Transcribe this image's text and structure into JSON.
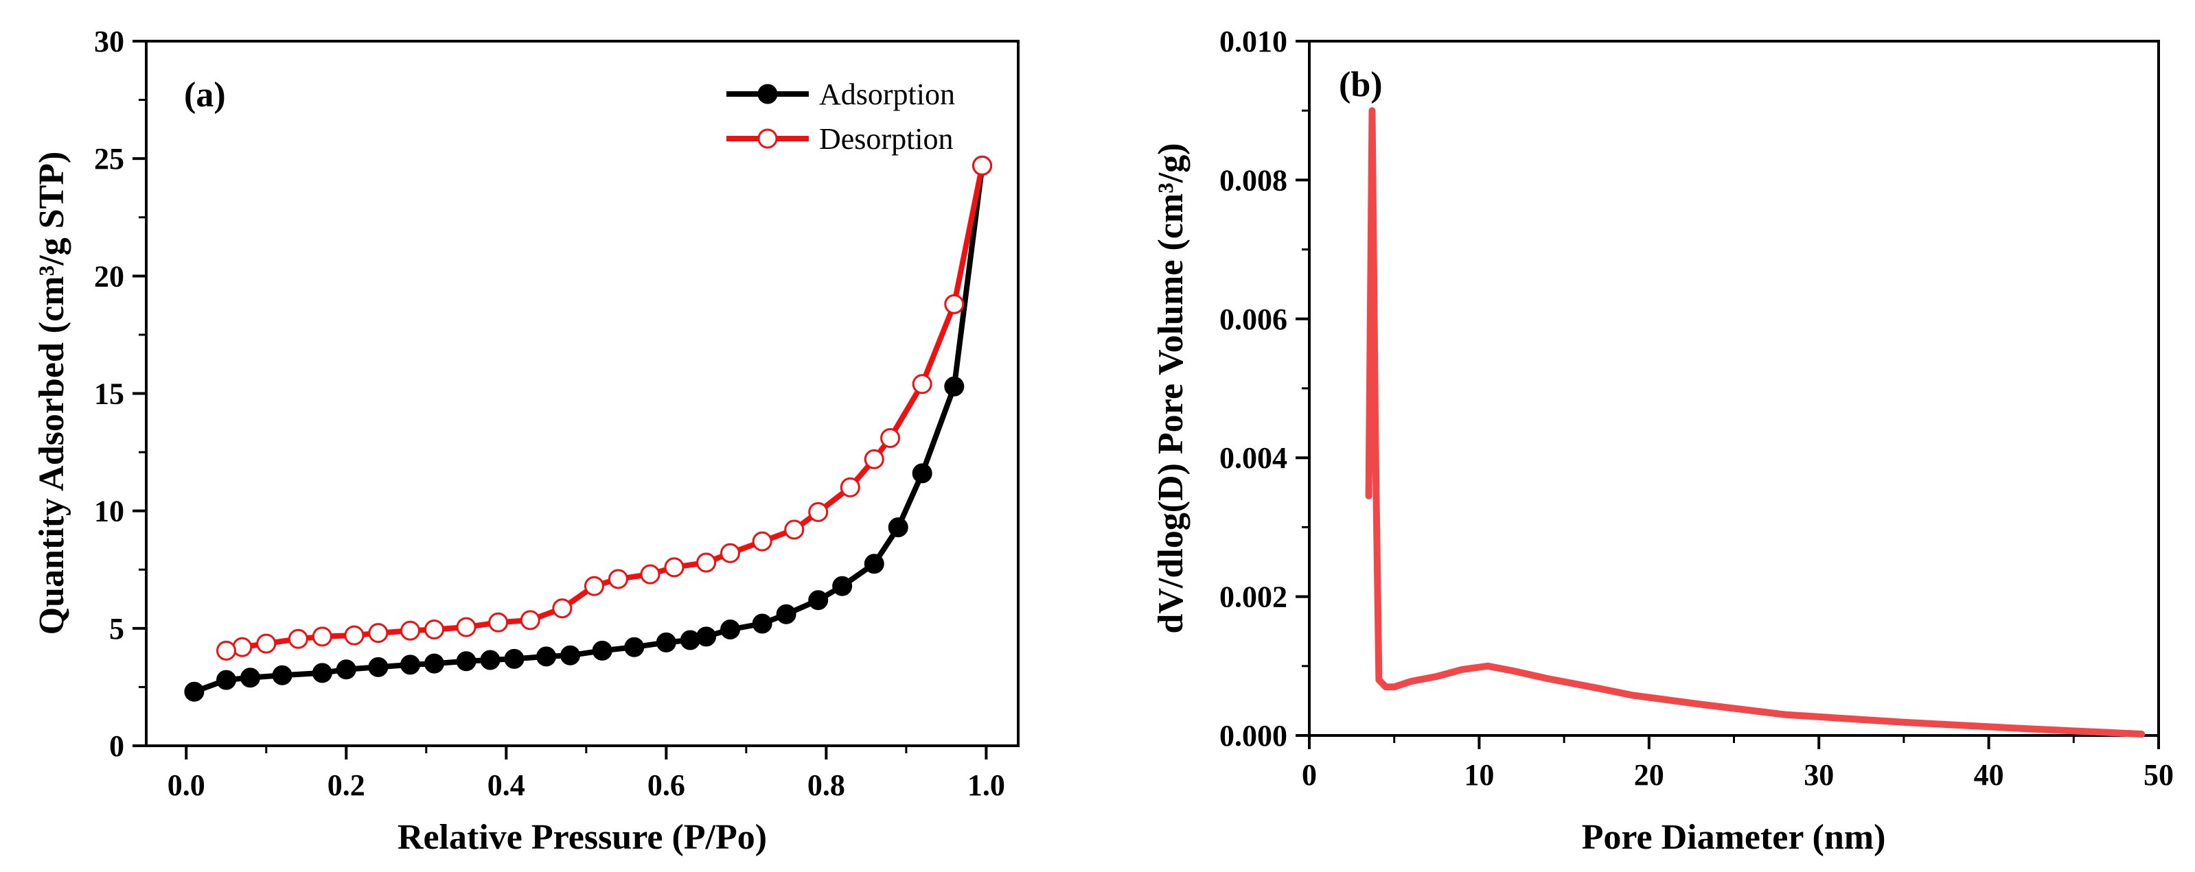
{
  "chart_data": [
    {
      "type": "line",
      "panel_label": "(a)",
      "xlabel": "Relative Pressure (P/Po)",
      "ylabel": "Quantity Adsorbed (cm³/g STP)",
      "xlim": [
        -0.05,
        1.04
      ],
      "ylim": [
        0,
        30
      ],
      "xticks": [
        0.0,
        0.2,
        0.4,
        0.6,
        0.8,
        1.0
      ],
      "xtick_labels": [
        "0.0",
        "0.2",
        "0.4",
        "0.6",
        "0.8",
        "1.0"
      ],
      "yticks": [
        0,
        5,
        10,
        15,
        20,
        25,
        30
      ],
      "ytick_labels": [
        "0",
        "5",
        "10",
        "15",
        "20",
        "25",
        "30"
      ],
      "grid": false,
      "legend_position": "top-right",
      "series": [
        {
          "name": "Adsorption",
          "color": "#000000",
          "marker": "filled-circle",
          "points": [
            [
              0.01,
              2.3
            ],
            [
              0.05,
              2.8
            ],
            [
              0.08,
              2.9
            ],
            [
              0.12,
              3.0
            ],
            [
              0.17,
              3.1
            ],
            [
              0.2,
              3.25
            ],
            [
              0.24,
              3.35
            ],
            [
              0.28,
              3.45
            ],
            [
              0.31,
              3.5
            ],
            [
              0.35,
              3.6
            ],
            [
              0.38,
              3.65
            ],
            [
              0.41,
              3.7
            ],
            [
              0.45,
              3.8
            ],
            [
              0.48,
              3.85
            ],
            [
              0.52,
              4.05
            ],
            [
              0.56,
              4.2
            ],
            [
              0.6,
              4.4
            ],
            [
              0.63,
              4.5
            ],
            [
              0.65,
              4.65
            ],
            [
              0.68,
              4.95
            ],
            [
              0.72,
              5.2
            ],
            [
              0.75,
              5.6
            ],
            [
              0.79,
              6.2
            ],
            [
              0.82,
              6.8
            ],
            [
              0.86,
              7.75
            ],
            [
              0.89,
              9.3
            ],
            [
              0.92,
              11.6
            ],
            [
              0.96,
              15.3
            ],
            [
              0.995,
              24.7
            ]
          ]
        },
        {
          "name": "Desorption",
          "color": "#ee1111",
          "marker": "open-circle",
          "points": [
            [
              0.995,
              24.7
            ],
            [
              0.96,
              18.8
            ],
            [
              0.92,
              15.4
            ],
            [
              0.88,
              13.1
            ],
            [
              0.86,
              12.2
            ],
            [
              0.83,
              11.0
            ],
            [
              0.79,
              9.95
            ],
            [
              0.76,
              9.2
            ],
            [
              0.72,
              8.7
            ],
            [
              0.68,
              8.2
            ],
            [
              0.65,
              7.8
            ],
            [
              0.61,
              7.6
            ],
            [
              0.58,
              7.3
            ],
            [
              0.54,
              7.1
            ],
            [
              0.51,
              6.8
            ],
            [
              0.47,
              5.85
            ],
            [
              0.43,
              5.35
            ],
            [
              0.39,
              5.25
            ],
            [
              0.35,
              5.05
            ],
            [
              0.31,
              4.95
            ],
            [
              0.28,
              4.9
            ],
            [
              0.24,
              4.8
            ],
            [
              0.21,
              4.7
            ],
            [
              0.17,
              4.65
            ],
            [
              0.14,
              4.55
            ],
            [
              0.1,
              4.35
            ],
            [
              0.07,
              4.2
            ],
            [
              0.05,
              4.05
            ]
          ]
        }
      ]
    },
    {
      "type": "line",
      "panel_label": "(b)",
      "xlabel": "Pore Diameter (nm)",
      "ylabel": "dV/dlog(D) Pore Volume (cm³/g)",
      "xlim": [
        0,
        50
      ],
      "ylim": [
        0,
        0.01
      ],
      "xticks": [
        0,
        10,
        20,
        30,
        40,
        50
      ],
      "xtick_labels": [
        "0",
        "10",
        "20",
        "30",
        "40",
        "50"
      ],
      "yticks": [
        0,
        0.002,
        0.004,
        0.006,
        0.008,
        0.01
      ],
      "ytick_labels": [
        "0.000",
        "0.002",
        "0.004",
        "0.006",
        "0.008",
        "0.010"
      ],
      "grid": false,
      "series": [
        {
          "color": "#f04848",
          "marker": "none",
          "points": [
            [
              3.5,
              0.00345
            ],
            [
              3.7,
              0.009
            ],
            [
              3.9,
              0.0041
            ],
            [
              4.1,
              0.0008
            ],
            [
              4.5,
              0.0007
            ],
            [
              5.0,
              0.0007
            ],
            [
              6.0,
              0.00078
            ],
            [
              7.5,
              0.00085
            ],
            [
              9.0,
              0.00095
            ],
            [
              10.5,
              0.001
            ],
            [
              12.0,
              0.00093
            ],
            [
              14.0,
              0.00082
            ],
            [
              17.0,
              0.00068
            ],
            [
              19.0,
              0.00058
            ],
            [
              23.0,
              0.00045
            ],
            [
              28.0,
              0.0003
            ],
            [
              35.0,
              0.00019
            ],
            [
              42.0,
              0.0001
            ],
            [
              49.0,
              2e-05
            ]
          ]
        }
      ]
    }
  ]
}
